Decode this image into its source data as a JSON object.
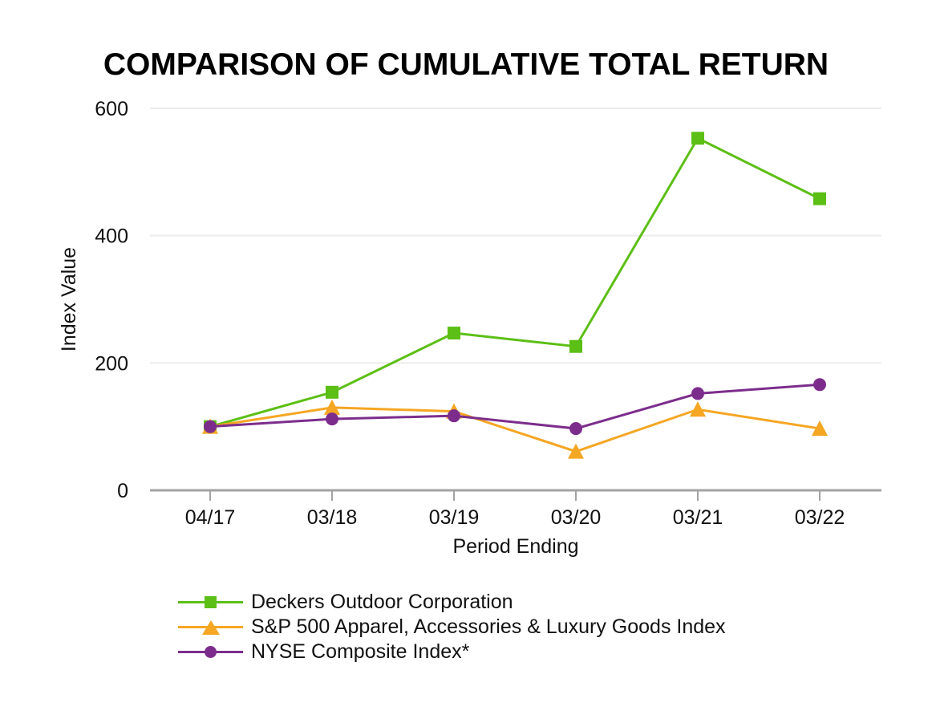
{
  "chart_data": {
    "type": "line",
    "title": "COMPARISON OF CUMULATIVE TOTAL RETURN",
    "xlabel": "Period Ending",
    "ylabel": "Index Value",
    "categories": [
      "04/17",
      "03/18",
      "03/19",
      "03/20",
      "03/21",
      "03/22"
    ],
    "yticks": [
      0,
      200,
      400,
      600
    ],
    "ylim": [
      0,
      600
    ],
    "grid": "horizontal-only",
    "legend_position": "bottom-left",
    "series": [
      {
        "name": "Deckers Outdoor Corporation",
        "marker": "square",
        "color": "#5CBF15",
        "values": [
          100,
          154,
          247,
          226,
          553,
          458
        ]
      },
      {
        "name": "S&P 500 Apparel, Accessories & Luxury Goods Index",
        "marker": "triangle",
        "color": "#F5A623",
        "values": [
          100,
          130,
          124,
          61,
          127,
          97
        ]
      },
      {
        "name": "NYSE Composite Index*",
        "marker": "circle",
        "color": "#7C2D8C",
        "values": [
          100,
          112,
          117,
          97,
          152,
          166
        ]
      }
    ],
    "colors": {
      "grid": "#ECECEC",
      "axis": "#A3A3A3",
      "tick_text": "#111111",
      "title_text": "#000000",
      "background": "#FFFFFF"
    }
  }
}
